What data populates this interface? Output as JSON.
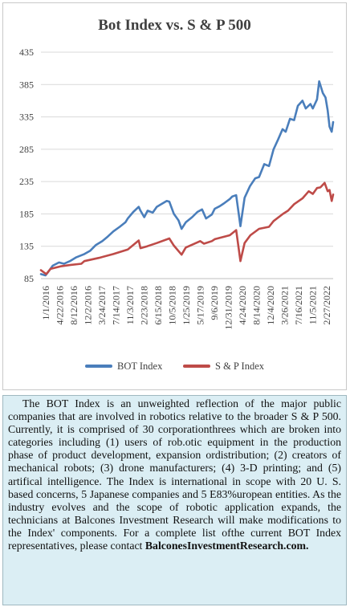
{
  "chart_data": {
    "type": "line",
    "title": "Bot Index vs. S & P 500",
    "xlabel": "",
    "ylabel": "",
    "ylim": [
      85,
      435
    ],
    "yticks": [
      85,
      135,
      185,
      235,
      285,
      335,
      385,
      435
    ],
    "xticks": [
      "1/1/2016",
      "4/22/2016",
      "8/12/2016",
      "12/2/2016",
      "3/24/2017",
      "7/14/2017",
      "11/3/2017",
      "2/23/2018",
      "6/15/2018",
      "10/5/2018",
      "1/25/2019",
      "5/17/2019",
      "9/6/2019",
      "12/31/2019",
      "4/24/2020",
      "8/14/2020",
      "12/4/2020",
      "3/26/2021",
      "7/16/2021",
      "11/5/2021",
      "2/27/2022"
    ],
    "grid": true,
    "legend_position": "bottom",
    "series": [
      {
        "name": "BOT Index",
        "color": "#4a7ebb",
        "x": [
          "2016-01-01",
          "2016-02-05",
          "2016-02-25",
          "2016-04-01",
          "2016-05-20",
          "2016-06-27",
          "2016-08-12",
          "2016-10-01",
          "2016-12-02",
          "2017-01-15",
          "2017-03-01",
          "2017-04-20",
          "2017-06-01",
          "2017-07-14",
          "2017-09-01",
          "2017-10-15",
          "2017-11-03",
          "2017-12-15",
          "2018-01-26",
          "2018-02-09",
          "2018-03-10",
          "2018-04-05",
          "2018-05-15",
          "2018-06-15",
          "2018-07-20",
          "2018-08-31",
          "2018-09-20",
          "2018-10-25",
          "2018-11-30",
          "2018-12-24",
          "2019-01-25",
          "2019-03-15",
          "2019-04-25",
          "2019-05-31",
          "2019-07-01",
          "2019-08-15",
          "2019-09-06",
          "2019-10-15",
          "2019-11-15",
          "2019-12-31",
          "2020-01-20",
          "2020-02-19",
          "2020-03-23",
          "2020-04-24",
          "2020-06-05",
          "2020-07-15",
          "2020-08-14",
          "2020-09-23",
          "2020-10-30",
          "2020-12-04",
          "2021-01-08",
          "2021-02-12",
          "2021-03-08",
          "2021-04-10",
          "2021-05-12",
          "2021-06-10",
          "2021-07-16",
          "2021-08-10",
          "2021-09-15",
          "2021-10-04",
          "2021-11-05",
          "2021-11-22",
          "2021-12-20",
          "2022-01-10",
          "2022-01-27",
          "2022-02-10",
          "2022-02-27",
          "2022-03-10"
        ],
        "y": [
          92,
          90,
          95,
          105,
          110,
          108,
          112,
          118,
          123,
          128,
          137,
          143,
          150,
          158,
          165,
          172,
          178,
          188,
          196,
          190,
          180,
          190,
          187,
          196,
          200,
          205,
          204,
          185,
          175,
          162,
          172,
          180,
          188,
          192,
          178,
          184,
          193,
          197,
          201,
          208,
          212,
          214,
          166,
          210,
          228,
          240,
          242,
          262,
          259,
          285,
          300,
          316,
          312,
          332,
          330,
          352,
          360,
          348,
          355,
          348,
          362,
          390,
          372,
          365,
          345,
          320,
          312,
          327
        ]
      },
      {
        "name": "S & P Index",
        "color": "#be4b48",
        "x": [
          "2016-01-01",
          "2016-02-11",
          "2016-03-15",
          "2016-06-01",
          "2016-08-12",
          "2016-11-08",
          "2016-12-02",
          "2017-03-24",
          "2017-07-14",
          "2017-11-03",
          "2018-01-26",
          "2018-02-09",
          "2018-04-02",
          "2018-06-15",
          "2018-09-20",
          "2018-10-25",
          "2018-12-24",
          "2019-01-25",
          "2019-05-17",
          "2019-06-15",
          "2019-08-15",
          "2019-09-06",
          "2019-12-31",
          "2020-02-19",
          "2020-03-23",
          "2020-04-24",
          "2020-06-08",
          "2020-08-14",
          "2020-10-30",
          "2020-12-04",
          "2021-02-15",
          "2021-03-26",
          "2021-05-12",
          "2021-07-16",
          "2021-09-02",
          "2021-10-04",
          "2021-11-05",
          "2021-12-01",
          "2022-01-03",
          "2022-01-27",
          "2022-02-10",
          "2022-02-27",
          "2022-03-10"
        ],
        "y": [
          98,
          92,
          100,
          104,
          106,
          108,
          112,
          117,
          123,
          130,
          144,
          132,
          135,
          140,
          147,
          136,
          122,
          133,
          143,
          139,
          143,
          146,
          152,
          160,
          112,
          140,
          152,
          162,
          165,
          174,
          185,
          190,
          200,
          209,
          220,
          216,
          225,
          226,
          233,
          220,
          222,
          205,
          215
        ]
      }
    ]
  },
  "description": {
    "body": "The BOT Index is an unweighted reflection of the major public companies that are involved in robotics relative to the broader S & P 500. Currently, it is comprised of 30 corporationthrees which are broken into categories including (1) users of rob.otic equipment in the production phase of product development, expansion ordistribution; (2) creators of mechanical robots; (3) drone manufacturers; (4) 3-D printing; and (5) artifical intelligence. The Index is international in scope with 20 U. S. based concerns, 5 Japanese companies and 5 E83%uropean entities. As the industry evolves and the scope of robotic application expands, the technicians at Balcones Investment Research will make modifications to the Index' components. For a complete list ofthe current BOT Index representatives, please contact",
    "link_text": "BalconesInvestmentResearch.com."
  }
}
